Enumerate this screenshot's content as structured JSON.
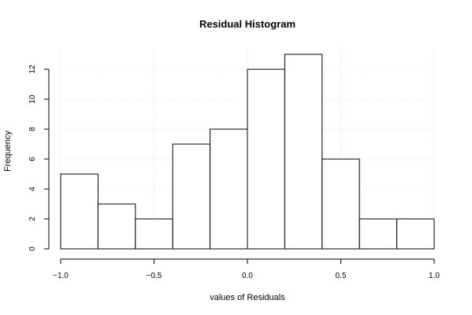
{
  "chart_data": {
    "type": "bar",
    "title": "Residual Histogram",
    "xlabel": "values of Residuals",
    "ylabel": "Frequency",
    "bins": [
      {
        "from": -1.0,
        "to": -0.8,
        "count": 5
      },
      {
        "from": -0.8,
        "to": -0.6,
        "count": 3
      },
      {
        "from": -0.6,
        "to": -0.4,
        "count": 2
      },
      {
        "from": -0.4,
        "to": -0.2,
        "count": 7
      },
      {
        "from": -0.2,
        "to": 0.0,
        "count": 8
      },
      {
        "from": 0.0,
        "to": 0.2,
        "count": 12
      },
      {
        "from": 0.2,
        "to": 0.4,
        "count": 13
      },
      {
        "from": 0.4,
        "to": 0.6,
        "count": 6
      },
      {
        "from": 0.6,
        "to": 0.8,
        "count": 2
      },
      {
        "from": 0.8,
        "to": 1.0,
        "count": 2
      }
    ],
    "xlim": [
      -1.0,
      1.0
    ],
    "ylim": [
      0,
      13
    ],
    "x_ticks": [
      -1.0,
      -0.5,
      0.0,
      0.5,
      1.0
    ],
    "x_tick_labels": [
      "−1.0",
      "−0.5",
      "0.0",
      "0.5",
      "1.0"
    ],
    "y_ticks": [
      0,
      2,
      4,
      6,
      8,
      10,
      12
    ],
    "y_tick_labels": [
      "0",
      "2",
      "4",
      "6",
      "8",
      "10",
      "12"
    ],
    "grid": true
  }
}
